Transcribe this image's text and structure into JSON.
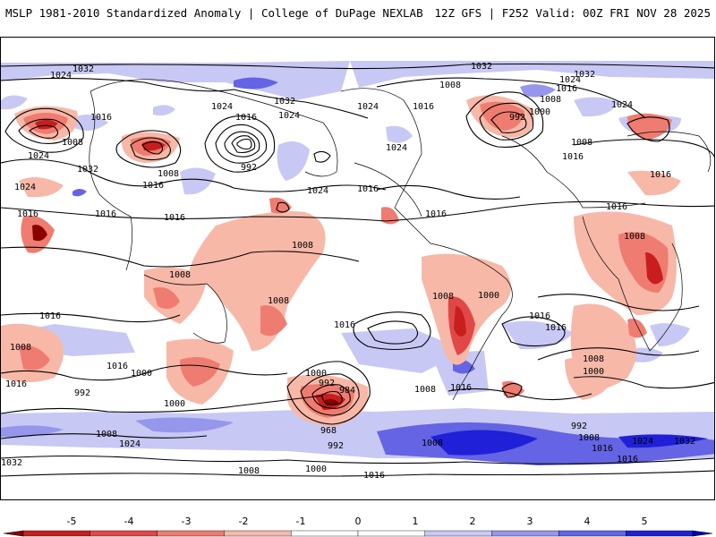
{
  "header": {
    "left_title": "MSLP 1981-2010 Standardized Anomaly | College of DuPage NEXLAB",
    "right_title": "12Z GFS | F252 Valid: 00Z FRI NOV 28 2025"
  },
  "colorbar": {
    "ticks": [
      "-5",
      "-4",
      "-3",
      "-2",
      "-1",
      "0",
      "1",
      "2",
      "3",
      "4",
      "5"
    ],
    "colors": [
      "#8b0000",
      "#c81e1e",
      "#e04848",
      "#ef7c70",
      "#f7b8a8",
      "#ffffff",
      "#ffffff",
      "#c8c8f4",
      "#9696ec",
      "#6464e4",
      "#2020d8",
      "#0000b8"
    ]
  },
  "map": {
    "isobar_labels": [
      "1032",
      "1024",
      "1016",
      "1008",
      "1024",
      "1032",
      "1024",
      "1016",
      "1024",
      "1016",
      "992",
      "1008",
      "1016",
      "1024",
      "1016",
      "1016",
      "1032",
      "1024",
      "1024",
      "1016",
      "1016",
      "1008",
      "1008",
      "1008",
      "1016",
      "1016",
      "1016",
      "1016",
      "1000",
      "992",
      "1008",
      "1000",
      "1008",
      "1024",
      "1032",
      "1008",
      "1000",
      "1016",
      "1032",
      "1016",
      "1008",
      "1024",
      "1016",
      "1008",
      "1032",
      "1024",
      "1008",
      "992",
      "1000",
      "1016",
      "1024",
      "1016",
      "1016",
      "1016",
      "1008",
      "1008",
      "1000",
      "1000",
      "992",
      "984",
      "968",
      "992",
      "1008",
      "1016",
      "1000",
      "1008",
      "1008",
      "1016",
      "992",
      "1008",
      "1016",
      "1024",
      "1032",
      "1016"
    ]
  }
}
